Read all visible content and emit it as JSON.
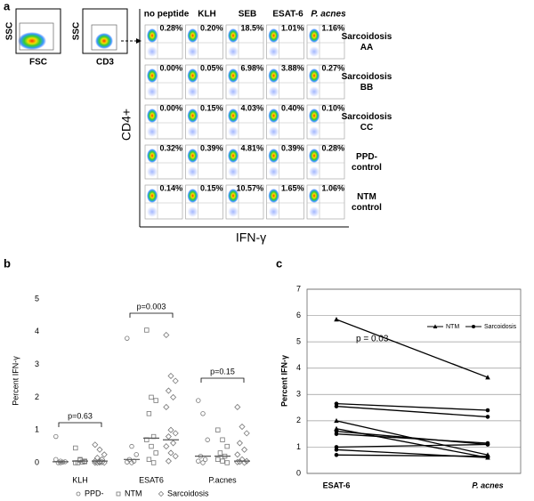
{
  "panel_a": {
    "label": "a",
    "gate_plots": [
      {
        "y_label": "SSC",
        "x_label": "FSC"
      },
      {
        "y_label": "SSC",
        "x_label": "CD3"
      }
    ],
    "columns": [
      "no peptide",
      "KLH",
      "SEB",
      "ESAT-6",
      "P. acnes"
    ],
    "rows": [
      "Sarcoidosis AA",
      "Sarcoidosis BB",
      "Sarcoidosis CC",
      "PPD- control",
      "NTM control"
    ],
    "percent": [
      [
        "0.28%",
        "0.20%",
        "18.5%",
        "1.01%",
        "1.16%"
      ],
      [
        "0.00%",
        "0.05%",
        "6.98%",
        "3.88%",
        "0.27%"
      ],
      [
        "0.00%",
        "0.15%",
        "4.03%",
        "0.40%",
        "0.10%"
      ],
      [
        "0.32%",
        "0.39%",
        "4.81%",
        "0.39%",
        "0.28%"
      ],
      [
        "0.14%",
        "0.15%",
        "10.57%",
        "1.65%",
        "1.06%"
      ]
    ],
    "y_label": "CD4+",
    "x_label": "IFN-γ"
  },
  "chart_data": [
    {
      "type": "dotplot",
      "panel_label": "b",
      "y_label": "Percent IFN-γ",
      "categories": [
        "KLH",
        "ESAT6",
        "P.acnes"
      ],
      "annotations": [
        "p=0.63",
        "p=0.003",
        "p=0.15"
      ],
      "ylim": [
        0,
        5
      ],
      "yticks": [
        0,
        1,
        2,
        3,
        4,
        5
      ],
      "series": [
        {
          "name": "PPD-",
          "marker": "circle",
          "color": "#777777",
          "values": [
            [
              0.8,
              0.05,
              0.03,
              0.0,
              0.02,
              0.1,
              0.0
            ],
            [
              3.8,
              0.5,
              0.25,
              0.1,
              0.05,
              0.02,
              0.0
            ],
            [
              1.9,
              1.5,
              0.7,
              0.2,
              0.1,
              0.05,
              0.0
            ]
          ],
          "medians": [
            0.03,
            0.1,
            0.2
          ]
        },
        {
          "name": "NTM",
          "marker": "square",
          "color": "#777777",
          "values": [
            [
              0.45,
              0.1,
              0.05,
              0.0,
              0.02,
              0.0,
              0.08,
              0.03
            ],
            [
              4.05,
              2.0,
              1.9,
              1.5,
              0.8,
              0.7,
              0.5,
              0.3,
              0.1,
              0.0
            ],
            [
              1.0,
              0.7,
              0.5,
              0.3,
              0.2,
              0.1,
              0.05,
              0.0
            ]
          ],
          "medians": [
            0.05,
            0.75,
            0.2
          ]
        },
        {
          "name": "Sarcoidosis",
          "marker": "diamond",
          "color": "#777777",
          "values": [
            [
              0.55,
              0.4,
              0.25,
              0.15,
              0.1,
              0.05,
              0.03,
              0.0,
              0.0,
              0.02,
              0.0,
              0.01
            ],
            [
              3.9,
              2.65,
              2.5,
              2.2,
              2.0,
              1.7,
              1.0,
              0.9,
              0.8,
              0.6,
              0.5,
              0.3,
              0.2,
              0.05
            ],
            [
              1.7,
              1.1,
              0.9,
              0.6,
              0.4,
              0.25,
              0.1,
              0.05,
              0.03,
              0.0,
              0.02
            ]
          ],
          "medians": [
            0.05,
            0.7,
            0.05
          ]
        }
      ]
    },
    {
      "type": "paired",
      "panel_label": "c",
      "y_label": "Percent IFN-γ",
      "categories": [
        "ESAT-6",
        "P. acnes"
      ],
      "annotation": "p = 0.03",
      "ylim": [
        0,
        7
      ],
      "yticks": [
        0,
        1,
        2,
        3,
        4,
        5,
        6,
        7
      ],
      "grid": true,
      "series": [
        {
          "name": "NTM",
          "marker": "triangle",
          "color": "#000000",
          "values": [
            [
              5.85,
              3.65
            ],
            [
              2.0,
              0.7
            ],
            [
              1.7,
              0.6
            ]
          ]
        },
        {
          "name": "Sarcoidosis",
          "marker": "circle",
          "color": "#000000",
          "values": [
            [
              2.65,
              2.4
            ],
            [
              2.55,
              2.15
            ],
            [
              1.6,
              1.1
            ],
            [
              1.5,
              1.15
            ],
            [
              1.0,
              1.1
            ],
            [
              0.9,
              0.6
            ],
            [
              0.7,
              0.65
            ]
          ]
        }
      ]
    }
  ]
}
